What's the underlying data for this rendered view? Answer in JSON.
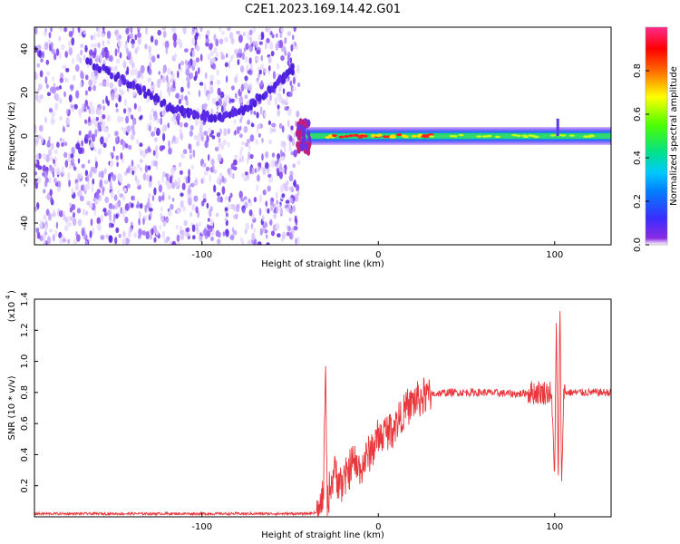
{
  "title": "C2E1.2023.169.14.42.G01",
  "chart_data": [
    {
      "type": "heatmap",
      "xlabel": "Height of straight line (km)",
      "ylabel": "Frequency (Hz)",
      "xlim": [
        -195,
        132
      ],
      "ylim": [
        -50,
        50
      ],
      "xticks": [
        -100,
        0,
        100
      ],
      "yticks": [
        -40,
        -20,
        0,
        20,
        40
      ],
      "colorbar": {
        "label": "Normalized spectral amplitude",
        "range": [
          0.0,
          1.0
        ],
        "ticks": [
          0.0,
          0.2,
          0.4,
          0.6,
          0.8
        ],
        "colormap": [
          "#8a2be2",
          "#3b2cff",
          "#00c8ff",
          "#00e090",
          "#4cff00",
          "#ffff00",
          "#ff6a00",
          "#ff0000",
          "#ff2a8a"
        ]
      },
      "features": {
        "noise_region_x": [
          -195,
          -45
        ],
        "signal_start_x": -45,
        "carrier_frequency_hz": 0,
        "arc_points": [
          [
            -165,
            34
          ],
          [
            -140,
            24
          ],
          [
            -120,
            14
          ],
          [
            -105,
            10
          ],
          [
            -90,
            8
          ],
          [
            -75,
            13
          ],
          [
            -60,
            22
          ],
          [
            -47,
            32
          ]
        ]
      }
    },
    {
      "type": "line",
      "xlabel": "Height of straight line (km)",
      "ylabel": "SNR (10 * v/v)",
      "y_scale_label": "(x10",
      "y_scale_exp": "4",
      "xlim": [
        -195,
        132
      ],
      "ylim": [
        0,
        1.4
      ],
      "xticks": [
        -100,
        0,
        100
      ],
      "yticks": [
        0.2,
        0.4,
        0.6,
        0.8,
        1.0,
        1.2,
        1.4
      ],
      "series": [
        {
          "color": "#e8383d",
          "points": [
            [
              -195,
              0.02
            ],
            [
              -40,
              0.02
            ],
            [
              -33,
              0.03
            ],
            [
              -31,
              0.18
            ],
            [
              -30,
              1.0
            ],
            [
              -29,
              0.1
            ],
            [
              -25,
              0.3
            ],
            [
              -20,
              0.2
            ],
            [
              -15,
              0.35
            ],
            [
              -10,
              0.3
            ],
            [
              -5,
              0.42
            ],
            [
              0,
              0.5
            ],
            [
              5,
              0.55
            ],
            [
              10,
              0.6
            ],
            [
              15,
              0.68
            ],
            [
              20,
              0.74
            ],
            [
              25,
              0.77
            ],
            [
              30,
              0.79
            ],
            [
              40,
              0.8
            ],
            [
              60,
              0.8
            ],
            [
              80,
              0.79
            ],
            [
              85,
              0.8
            ],
            [
              95,
              0.8
            ],
            [
              98,
              0.8
            ],
            [
              100,
              0.3
            ],
            [
              101,
              1.25
            ],
            [
              102,
              0.2
            ],
            [
              103,
              1.35
            ],
            [
              104,
              0.15
            ],
            [
              105,
              0.8
            ],
            [
              115,
              0.8
            ],
            [
              132,
              0.8
            ]
          ]
        }
      ]
    }
  ]
}
